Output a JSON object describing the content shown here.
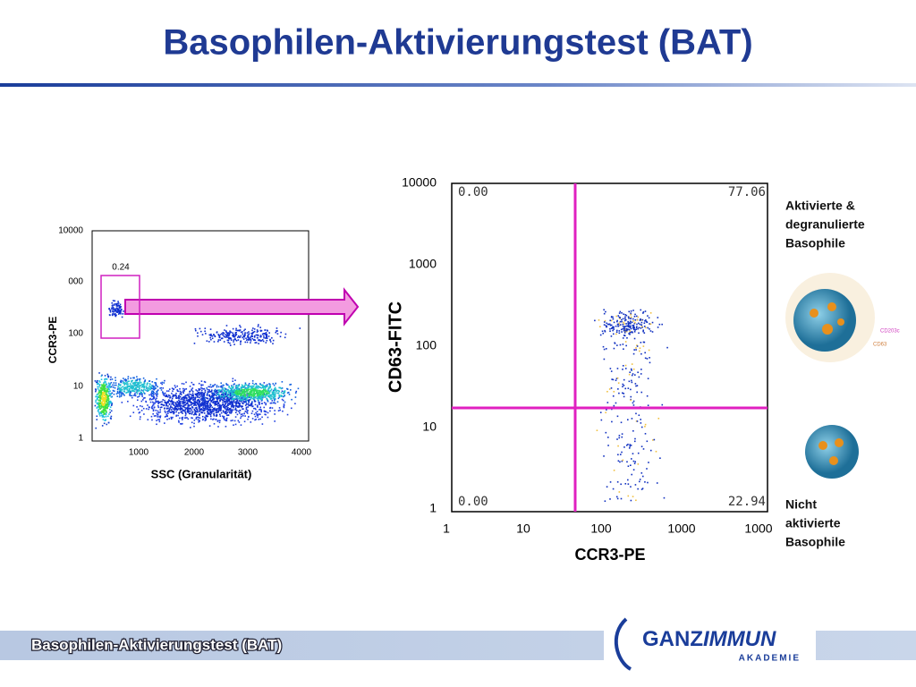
{
  "header": {
    "title": "Basophilen-Aktivierungstest (BAT)"
  },
  "left_plot": {
    "y_label": "CCR3-PE",
    "x_label": "SSC (Granularität)",
    "gate_value": "0.24",
    "y_ticks": [
      "10000",
      "000",
      "100",
      "10",
      "1"
    ],
    "x_ticks": [
      "1000",
      "2000",
      "3000",
      "4000"
    ]
  },
  "right_plot": {
    "y_label": "CD63-FITC",
    "x_label": "CCR3-PE",
    "y_ticks": [
      "10000",
      "1000",
      "100",
      "10",
      "1"
    ],
    "x_ticks": [
      "1",
      "10",
      "100",
      "1000",
      "1000"
    ],
    "quadrants": {
      "upper_left": "0.00",
      "upper_right": "77.06",
      "lower_left": "0.00",
      "lower_right": "22.94"
    }
  },
  "activated_label": [
    "Aktivierte &",
    "degranulierte",
    "Basophile"
  ],
  "illustration_labels": [
    "CD203c",
    "CD63"
  ],
  "not_activated_label": [
    "Nicht",
    "aktivierte",
    "Basophile"
  ],
  "footer": {
    "text": "Basophilen-Aktivierungstest (BAT)",
    "logo_main": "GANZ",
    "logo_accent": "IMMUN",
    "logo_sub": "AKADEMIE"
  }
}
